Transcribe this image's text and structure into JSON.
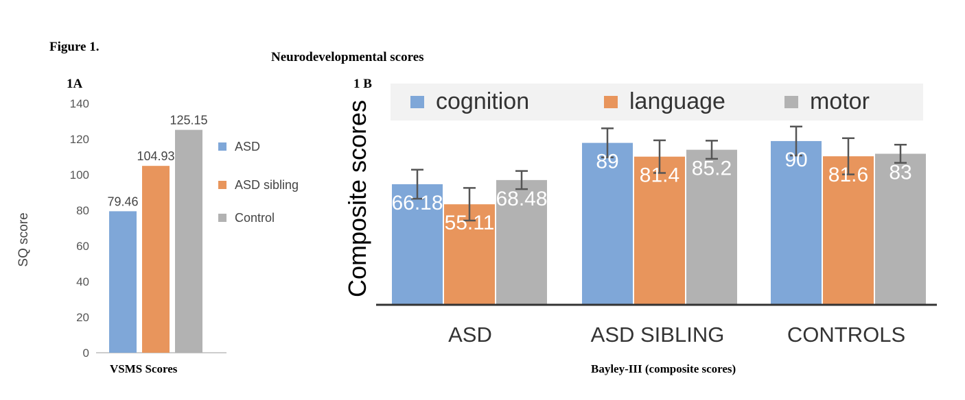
{
  "figure": {
    "label": "Figure 1.",
    "title": "Neurodevelopmental scores"
  },
  "colors": {
    "blue": "#7fa7d8",
    "orange": "#e8955c",
    "gray": "#b2b2b2",
    "legend_bg": "#f2f2f2",
    "axis": "#666666",
    "error_bar": "#555555"
  },
  "chart_data": [
    {
      "panel_label": "1A",
      "type": "bar",
      "ylabel": "SQ score",
      "xlabel": "VSMS  Scores",
      "ylim": [
        0,
        140
      ],
      "yticks": [
        0,
        20,
        40,
        60,
        80,
        100,
        120,
        140
      ],
      "grid": false,
      "legend_position": "right",
      "series": [
        {
          "name": "ASD",
          "value": 79.46,
          "color": "blue"
        },
        {
          "name": "ASD sibling",
          "value": 104.93,
          "color": "orange"
        },
        {
          "name": "Control",
          "value": 125.15,
          "color": "gray"
        }
      ],
      "data_labels": [
        "79.46",
        "104.93",
        "125.15"
      ]
    },
    {
      "panel_label": "1 B",
      "type": "bar",
      "ylabel": "Composite scores",
      "xlabel": "Bayley-III (composite scores)",
      "categories": [
        "ASD",
        "ASD SIBLING",
        "CONTROLS"
      ],
      "ylim": [
        0,
        120
      ],
      "grid": false,
      "legend_position": "top",
      "series": [
        {
          "name": "cognition",
          "color": "blue",
          "values": [
            66.18,
            89,
            90
          ],
          "labels": [
            "66.18",
            "89",
            "90"
          ],
          "error": [
            8,
            8,
            8
          ]
        },
        {
          "name": "language",
          "color": "orange",
          "values": [
            55.11,
            81.4,
            81.6
          ],
          "labels": [
            "55.11",
            "81.4",
            "81.6"
          ],
          "error": [
            9,
            9,
            10
          ]
        },
        {
          "name": "motor",
          "color": "gray",
          "values": [
            68.48,
            85.2,
            83
          ],
          "labels": [
            "68.48",
            "85.2",
            "83"
          ],
          "error": [
            5,
            5,
            5
          ]
        }
      ]
    }
  ]
}
